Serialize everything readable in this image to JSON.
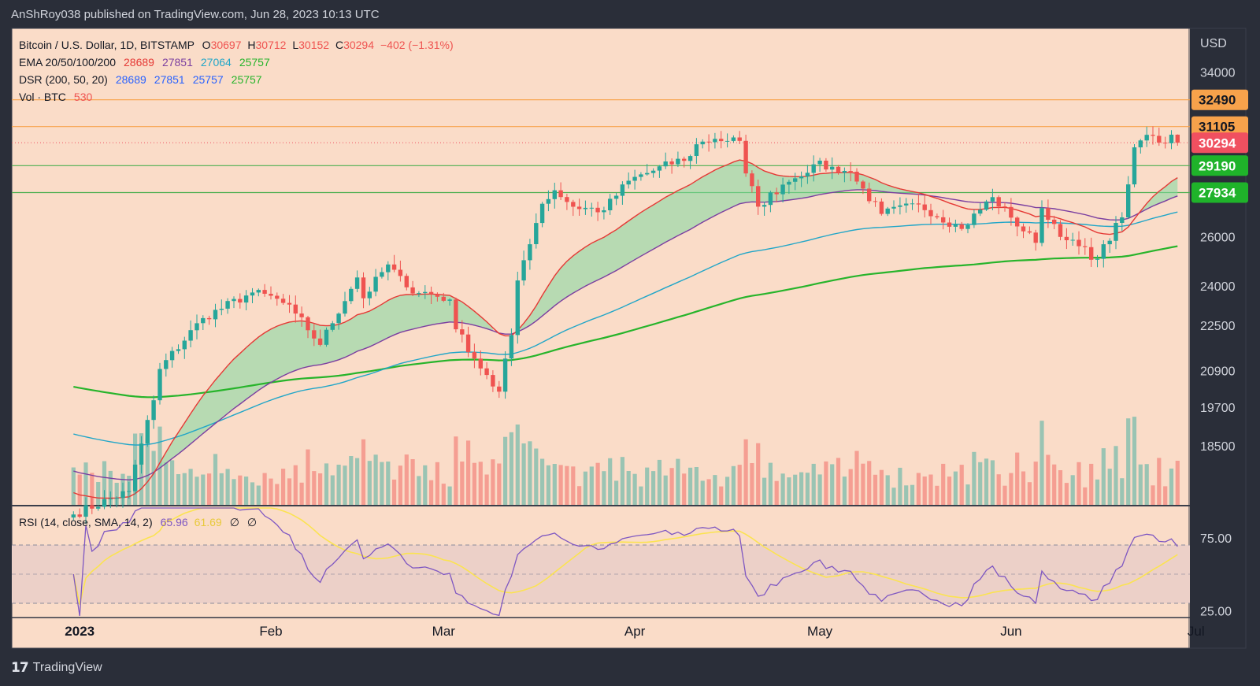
{
  "header": "AnShRoy038 published on TradingView.com, Jun 28, 2023 10:13 UTC",
  "footer_brand": "TradingView",
  "legend": {
    "symbol": {
      "title": "Bitcoin / U.S. Dollar, 1D, BITSTAMP",
      "o_label": "O",
      "o": "30697",
      "h_label": "H",
      "h": "30712",
      "l_label": "L",
      "l": "30152",
      "c_label": "C",
      "c": "30294",
      "change": "−402 (−1.31%)"
    },
    "ema": {
      "title": "EMA 20/50/100/200",
      "values": [
        "28689",
        "27851",
        "27064",
        "25757"
      ]
    },
    "dsr": {
      "title": "DSR (200, 50, 20)",
      "values": [
        "28689",
        "27851",
        "25757",
        "25757"
      ]
    },
    "vol": {
      "title": "Vol · BTC",
      "value": "530"
    },
    "rsi": {
      "title": "RSI (14, close, SMA, 14, 2)",
      "values": [
        "65.96",
        "61.69",
        "∅",
        "∅"
      ]
    }
  },
  "colors": {
    "up": "#26a69a",
    "down": "#ef5350",
    "ema20": "#e53935",
    "ema50": "#7b3fa0",
    "ema100": "#21a6c8",
    "ema200": "#27b42b",
    "rsi": "#7e57c2",
    "rsi_sma": "#fbe351",
    "resistance": "#f7a24b",
    "support": "#4caf50",
    "last_price": "#f05060"
  },
  "price_axis": {
    "currency": "USD",
    "ticks": [
      "34000",
      "26000",
      "24000",
      "22500",
      "20900",
      "19700",
      "18500"
    ]
  },
  "price_axis_labels": [
    {
      "value": "32490",
      "kind": "resistance"
    },
    {
      "value": "31105",
      "kind": "resistance"
    },
    {
      "value": "30294",
      "kind": "last_price"
    },
    {
      "value": "29190",
      "kind": "support"
    },
    {
      "value": "27934",
      "kind": "support"
    }
  ],
  "rsi_axis": {
    "ticks": [
      "75.00",
      "25.00"
    ]
  },
  "time_axis": {
    "labels": [
      "2023",
      "Feb",
      "Mar",
      "Apr",
      "May",
      "Jun",
      "Jul"
    ]
  },
  "chart_data": {
    "type": "candlestick",
    "title": "Bitcoin / U.S. Dollar, 1D, BITSTAMP",
    "x_range": [
      "2022-12-21",
      "2023-06-30"
    ],
    "y_unit": "USD",
    "y_scale": "log",
    "ylim": [
      16800,
      36500
    ],
    "grid": false,
    "horizontal_levels": [
      {
        "price": 32490,
        "kind": "resistance"
      },
      {
        "price": 31105,
        "kind": "resistance"
      },
      {
        "price": 29190,
        "kind": "support"
      },
      {
        "price": 27934,
        "kind": "support"
      }
    ],
    "key_points": [
      {
        "date": "2022-12-31",
        "close": 16540
      },
      {
        "date": "2023-01-09",
        "close": 17180
      },
      {
        "date": "2023-01-13",
        "close": 19920
      },
      {
        "date": "2023-01-14",
        "close": 20960
      },
      {
        "date": "2023-01-21",
        "close": 22770
      },
      {
        "date": "2023-01-29",
        "close": 23740
      },
      {
        "date": "2023-02-02",
        "close": 23500
      },
      {
        "date": "2023-02-05",
        "close": 22940
      },
      {
        "date": "2023-02-09",
        "close": 21800
      },
      {
        "date": "2023-02-15",
        "close": 24330
      },
      {
        "date": "2023-02-16",
        "close": 23520
      },
      {
        "date": "2023-02-20",
        "close": 24850
      },
      {
        "date": "2023-02-23",
        "close": 23940
      },
      {
        "date": "2023-03-02",
        "close": 23470
      },
      {
        "date": "2023-03-03",
        "close": 22360
      },
      {
        "date": "2023-03-09",
        "close": 20370
      },
      {
        "date": "2023-03-10",
        "close": 20200
      },
      {
        "date": "2023-03-12",
        "close": 22150
      },
      {
        "date": "2023-03-13",
        "close": 24210
      },
      {
        "date": "2023-03-17",
        "close": 27430
      },
      {
        "date": "2023-03-19",
        "close": 28040
      },
      {
        "date": "2023-03-22",
        "close": 27300
      },
      {
        "date": "2023-03-27",
        "close": 27140
      },
      {
        "date": "2023-03-31",
        "close": 28480
      },
      {
        "date": "2023-04-10",
        "close": 29650
      },
      {
        "date": "2023-04-11",
        "close": 30220
      },
      {
        "date": "2023-04-14",
        "close": 30490
      },
      {
        "date": "2023-04-18",
        "close": 30390
      },
      {
        "date": "2023-04-19",
        "close": 28820
      },
      {
        "date": "2023-04-21",
        "close": 27300
      },
      {
        "date": "2023-04-25",
        "close": 28300
      },
      {
        "date": "2023-04-26",
        "close": 28430
      },
      {
        "date": "2023-04-30",
        "close": 29250
      },
      {
        "date": "2023-05-06",
        "close": 28900
      },
      {
        "date": "2023-05-07",
        "close": 28440
      },
      {
        "date": "2023-05-11",
        "close": 26980
      },
      {
        "date": "2023-05-17",
        "close": 27400
      },
      {
        "date": "2023-05-24",
        "close": 26330
      },
      {
        "date": "2023-05-29",
        "close": 27730
      },
      {
        "date": "2023-06-01",
        "close": 26820
      },
      {
        "date": "2023-06-05",
        "close": 25740
      },
      {
        "date": "2023-06-06",
        "close": 27240
      },
      {
        "date": "2023-06-10",
        "close": 25850
      },
      {
        "date": "2023-06-15",
        "close": 25080
      },
      {
        "date": "2023-06-19",
        "close": 26830
      },
      {
        "date": "2023-06-20",
        "close": 28310
      },
      {
        "date": "2023-06-21",
        "close": 30070
      },
      {
        "date": "2023-06-23",
        "close": 30690
      },
      {
        "date": "2023-06-26",
        "close": 30270
      },
      {
        "date": "2023-06-27",
        "close": 30697
      },
      {
        "date": "2023-06-28",
        "open": 30697,
        "high": 30712,
        "low": 30152,
        "close": 30294
      }
    ],
    "series": [
      {
        "name": "EMA 20",
        "last": 28689
      },
      {
        "name": "EMA 50",
        "last": 27851
      },
      {
        "name": "EMA 100",
        "last": 27064
      },
      {
        "name": "EMA 200",
        "last": 25757
      }
    ],
    "volume": {
      "unit": "BTC",
      "last": 530
    },
    "rsi": {
      "ylim": [
        0,
        100
      ],
      "bands": [
        30,
        50,
        70
      ],
      "last_rsi": 65.96,
      "last_sma": 61.69
    },
    "time_labels": [
      "2023",
      "Feb",
      "Mar",
      "Apr",
      "May",
      "Jun",
      "Jul"
    ]
  }
}
